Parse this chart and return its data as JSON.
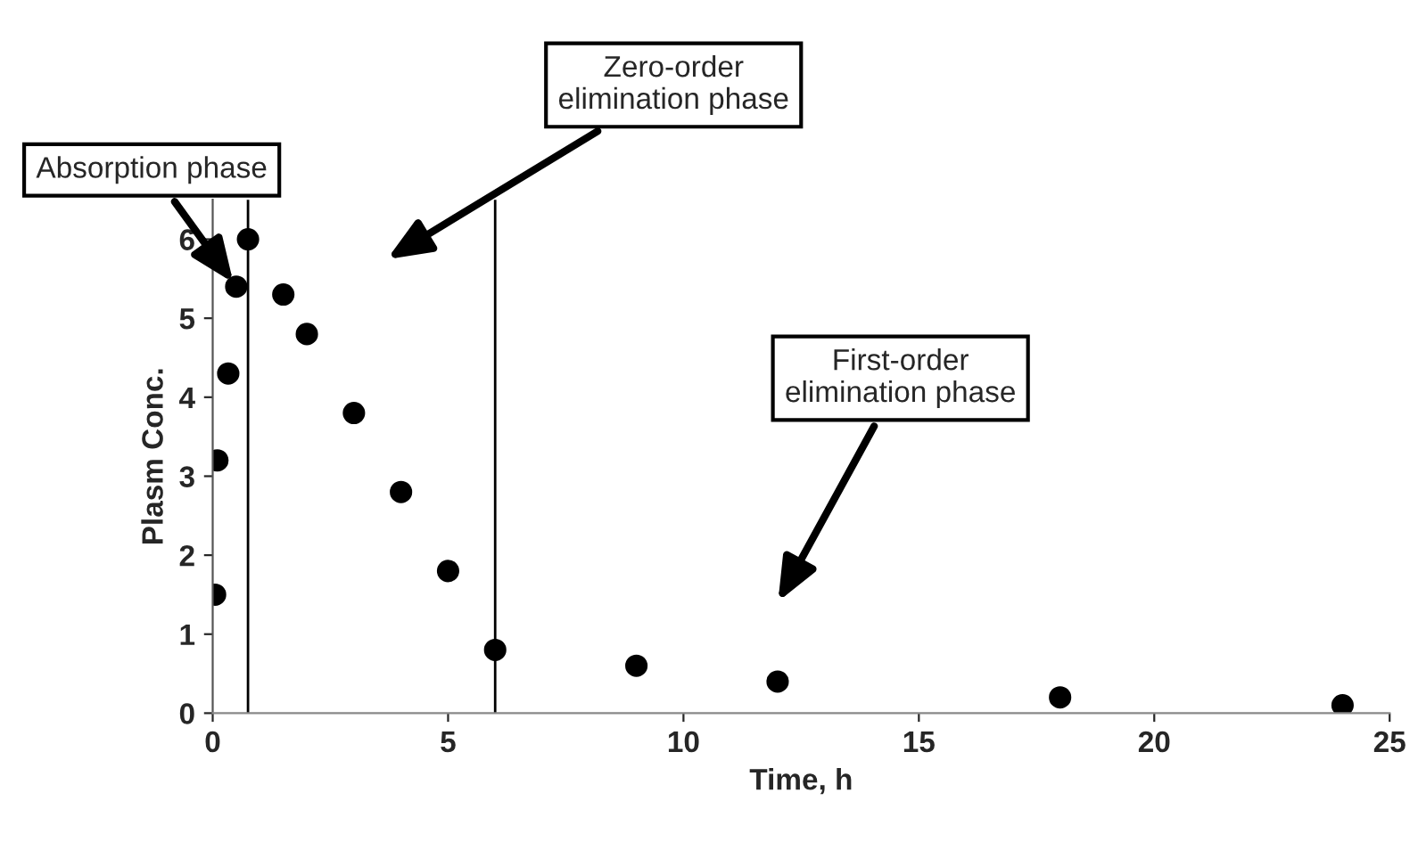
{
  "chart_data": {
    "type": "scatter",
    "xlabel": "Time, h",
    "ylabel": "Plasm Conc.",
    "x": [
      0.05,
      0.1,
      0.33,
      0.5,
      0.75,
      1.5,
      2,
      3,
      4,
      5,
      6,
      9,
      12,
      18,
      24
    ],
    "values": [
      1.5,
      3.2,
      4.3,
      5.4,
      6.0,
      5.3,
      4.8,
      3.8,
      2.8,
      1.8,
      0.8,
      0.6,
      0.4,
      0.2,
      0.1
    ],
    "color": "#000000",
    "marker": "circle",
    "xlim": [
      0,
      25
    ],
    "xticks": [
      0,
      5,
      10,
      15,
      20,
      25
    ],
    "ylim": [
      0,
      6.5
    ],
    "yticks": [
      0,
      1,
      2,
      3,
      4,
      5,
      6
    ],
    "grid": false,
    "ref_lines": [
      {
        "axis": "x",
        "value": 0.75,
        "color": "#000000"
      },
      {
        "axis": "x",
        "value": 6,
        "color": "#000000"
      }
    ],
    "annotations": [
      {
        "text": "Absorption phase",
        "x": 0.5,
        "y": 5.4
      },
      "Zero-order\nelimination phase",
      "First-order\nelimination phase"
    ]
  }
}
